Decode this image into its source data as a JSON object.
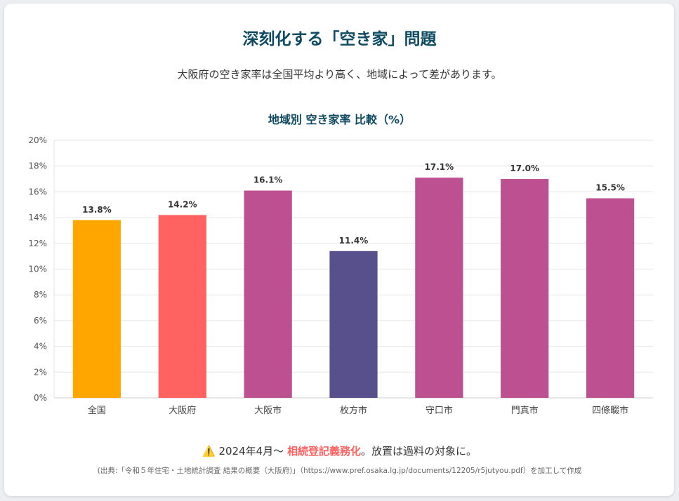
{
  "header": {
    "title": "深刻化する「空き家」問題",
    "subtitle": "大阪府の空き家率は全国平均より高く、地域によって差があります。"
  },
  "chart_data": {
    "type": "bar",
    "title": "地域別 空き家率 比較（%）",
    "categories": [
      "全国",
      "大阪府",
      "大阪市",
      "枚方市",
      "守口市",
      "門真市",
      "四條畷市"
    ],
    "values": [
      13.8,
      14.2,
      16.1,
      11.4,
      17.1,
      17.0,
      15.5
    ],
    "data_labels": [
      "13.8%",
      "14.2%",
      "16.1%",
      "11.4%",
      "17.1%",
      "17.0%",
      "15.5%"
    ],
    "colors": [
      "#ffa600",
      "#ff6361",
      "#bc5090",
      "#58508d",
      "#bc5090",
      "#bc5090",
      "#bc5090"
    ],
    "yticks": [
      "0%",
      "2%",
      "4%",
      "6%",
      "8%",
      "10%",
      "12%",
      "14%",
      "16%",
      "18%",
      "20%"
    ],
    "ylim": [
      0,
      20
    ],
    "grid": true,
    "xlabel": "",
    "ylabel": ""
  },
  "footer": {
    "warning_icon": "warning-icon",
    "warning_glyph": "⚠️",
    "note_prefix": "2024年4月〜 ",
    "note_highlight": "相続登記義務化",
    "note_suffix": "。放置は過料の対象に。",
    "source": "(出典:「令和５年住宅・土地統計調査 結果の概要（大阪府)」（https://www.pref.osaka.lg.jp/documents/12205/r5jutyou.pdf）を加工して作成"
  }
}
